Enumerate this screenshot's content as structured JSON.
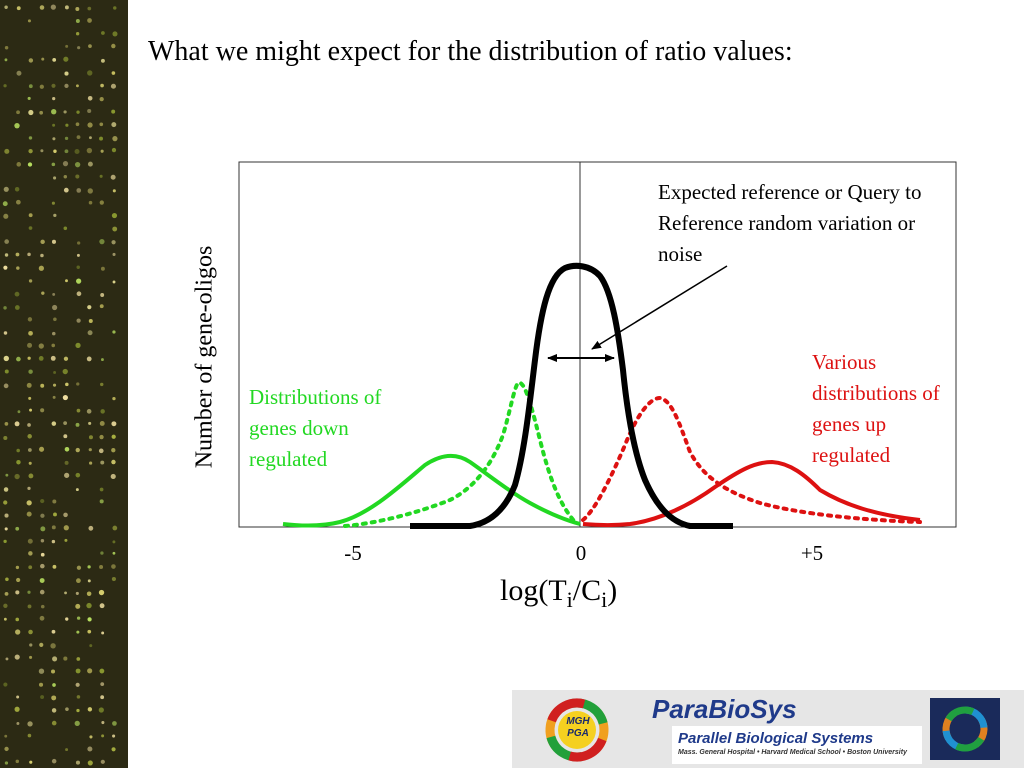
{
  "slide": {
    "title": "What we might expect for the distribution of ratio values:"
  },
  "figure": {
    "y_axis_label": "Number of gene-oligos",
    "x_axis_label": {
      "prefix": "log(T",
      "sub1": "i",
      "middle": "/C",
      "sub2": "i",
      "suffix": ")"
    },
    "x_ticks": [
      "-5",
      "0",
      "+5"
    ],
    "annotations": {
      "reference": "Expected reference or Query to Reference random variation or noise",
      "down_regulated": "Distributions of genes down regulated",
      "up_regulated": "Various distributions of genes up regulated"
    },
    "colors": {
      "reference": "#000000",
      "down_regulated": "#22d822",
      "up_regulated": "#dd1111",
      "sidebar_background": "#2c2a14"
    }
  },
  "banner": {
    "emblem_text": "MGH PGA",
    "name": "ParaBioSys",
    "subtitle": "Parallel Biological Systems",
    "institutions": "Mass. General Hospital • Harvard Medical School • Boston University"
  }
}
